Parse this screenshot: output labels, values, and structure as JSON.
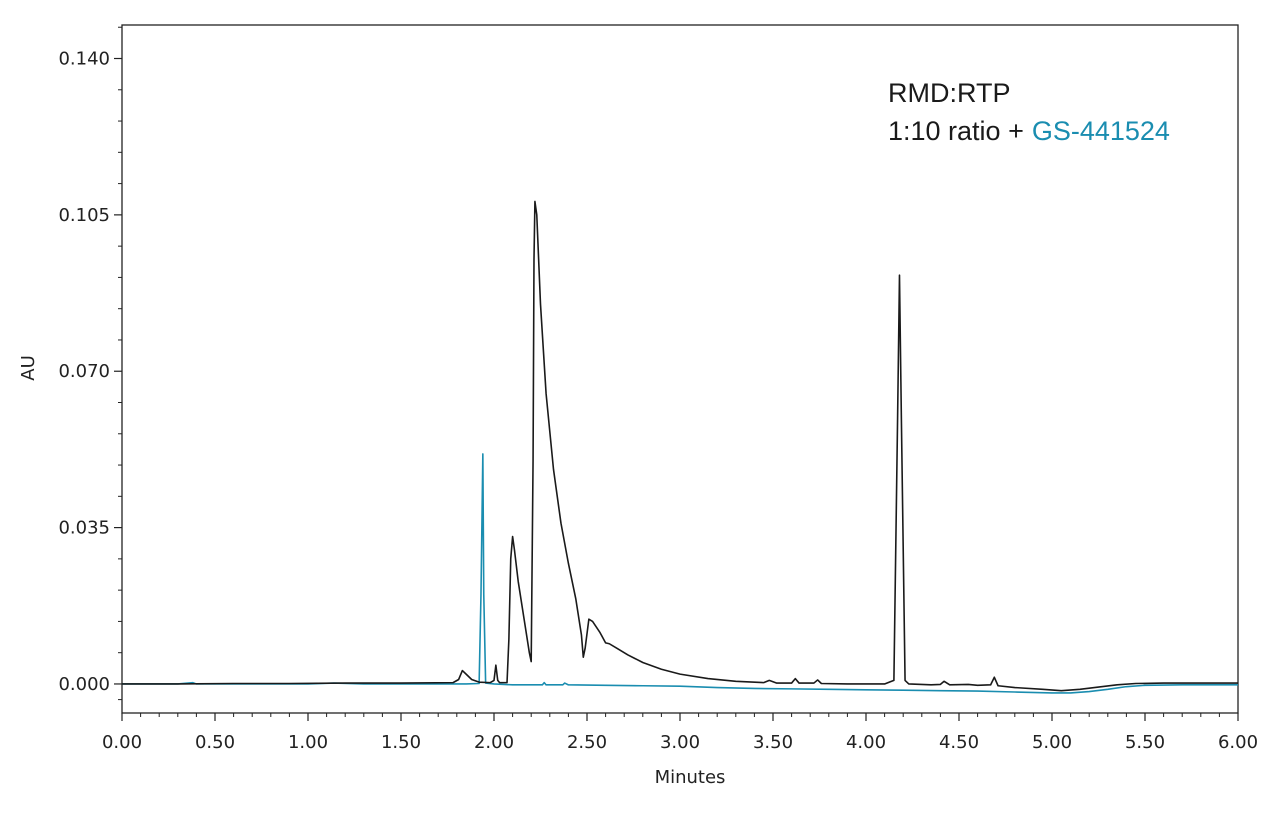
{
  "chart_data": {
    "type": "line",
    "title": "",
    "xlabel": "Minutes",
    "ylabel": "AU",
    "xlim": [
      0.0,
      6.0
    ],
    "ylim": [
      -0.0065,
      0.1475
    ],
    "x_ticks": [
      "0.00",
      "0.50",
      "1.00",
      "1.50",
      "2.00",
      "2.50",
      "3.00",
      "3.50",
      "4.00",
      "4.50",
      "5.00",
      "5.50",
      "6.00"
    ],
    "y_ticks": [
      "0.000",
      "0.035",
      "0.070",
      "0.105",
      "0.140"
    ],
    "grid": false,
    "annotation": {
      "line1": "RMD:RTP",
      "line2_prefix": "1:10 ratio +",
      "line2_highlight": "GS-441524"
    },
    "colors": {
      "black_trace": "#1a1a1a",
      "blue_trace": "#1a8db0",
      "axis": "#222222"
    },
    "series": [
      {
        "color": "#1a1a1a",
        "points": [
          [
            0.0,
            0.0
          ],
          [
            0.3,
            0.0
          ],
          [
            0.6,
            0.0001
          ],
          [
            0.9,
            0.0001
          ],
          [
            1.2,
            0.0002
          ],
          [
            1.5,
            0.0002
          ],
          [
            1.78,
            0.0003
          ],
          [
            1.81,
            0.001
          ],
          [
            1.83,
            0.003
          ],
          [
            1.85,
            0.0022
          ],
          [
            1.88,
            0.001
          ],
          [
            1.92,
            0.0004
          ],
          [
            1.98,
            0.0003
          ],
          [
            2.0,
            0.0008
          ],
          [
            2.01,
            0.0042
          ],
          [
            2.02,
            0.0008
          ],
          [
            2.03,
            0.0003
          ],
          [
            2.07,
            0.0003
          ],
          [
            2.08,
            0.01
          ],
          [
            2.09,
            0.028
          ],
          [
            2.1,
            0.033
          ],
          [
            2.11,
            0.03
          ],
          [
            2.13,
            0.023
          ],
          [
            2.16,
            0.015
          ],
          [
            2.19,
            0.007
          ],
          [
            2.2,
            0.005
          ],
          [
            2.21,
            0.05
          ],
          [
            2.215,
            0.095
          ],
          [
            2.22,
            0.108
          ],
          [
            2.23,
            0.105
          ],
          [
            2.25,
            0.085
          ],
          [
            2.28,
            0.065
          ],
          [
            2.32,
            0.048
          ],
          [
            2.36,
            0.036
          ],
          [
            2.4,
            0.027
          ],
          [
            2.44,
            0.019
          ],
          [
            2.47,
            0.011
          ],
          [
            2.48,
            0.006
          ],
          [
            2.49,
            0.008
          ],
          [
            2.51,
            0.0145
          ],
          [
            2.53,
            0.014
          ],
          [
            2.57,
            0.0115
          ],
          [
            2.6,
            0.0092
          ],
          [
            2.62,
            0.009
          ],
          [
            2.66,
            0.008
          ],
          [
            2.72,
            0.0065
          ],
          [
            2.8,
            0.0048
          ],
          [
            2.9,
            0.0033
          ],
          [
            3.0,
            0.0022
          ],
          [
            3.15,
            0.0012
          ],
          [
            3.3,
            0.0006
          ],
          [
            3.45,
            0.0003
          ],
          [
            3.48,
            0.0008
          ],
          [
            3.52,
            0.0002
          ],
          [
            3.6,
            0.0002
          ],
          [
            3.62,
            0.0012
          ],
          [
            3.64,
            0.0002
          ],
          [
            3.72,
            0.0002
          ],
          [
            3.74,
            0.0009
          ],
          [
            3.76,
            0.0001
          ],
          [
            3.9,
            0.0
          ],
          [
            4.1,
            0.0
          ],
          [
            4.15,
            0.0008
          ],
          [
            4.17,
            0.06
          ],
          [
            4.18,
            0.0915
          ],
          [
            4.19,
            0.06
          ],
          [
            4.21,
            0.0008
          ],
          [
            4.23,
            0.0
          ],
          [
            4.35,
            -0.0002
          ],
          [
            4.4,
            -0.0001
          ],
          [
            4.42,
            0.0006
          ],
          [
            4.45,
            -0.0002
          ],
          [
            4.55,
            -0.0001
          ],
          [
            4.6,
            -0.0003
          ],
          [
            4.67,
            -0.0002
          ],
          [
            4.69,
            0.0015
          ],
          [
            4.71,
            -0.0004
          ],
          [
            4.8,
            -0.0008
          ],
          [
            4.95,
            -0.0012
          ],
          [
            5.05,
            -0.0015
          ],
          [
            5.15,
            -0.0012
          ],
          [
            5.25,
            -0.0007
          ],
          [
            5.35,
            -0.0002
          ],
          [
            5.45,
            0.0001
          ],
          [
            5.6,
            0.0002
          ],
          [
            5.8,
            0.0002
          ],
          [
            6.0,
            0.0002
          ]
        ]
      },
      {
        "color": "#1a8db0",
        "points": [
          [
            0.0,
            0.0
          ],
          [
            0.3,
            0.0
          ],
          [
            0.38,
            0.0003
          ],
          [
            0.4,
            0.0
          ],
          [
            0.7,
            0.0
          ],
          [
            1.0,
            0.0
          ],
          [
            1.14,
            0.0002
          ],
          [
            1.3,
            0.0
          ],
          [
            1.6,
            0.0
          ],
          [
            1.85,
            0.0
          ],
          [
            1.92,
            0.0001
          ],
          [
            1.93,
            0.02
          ],
          [
            1.94,
            0.0515
          ],
          [
            1.945,
            0.02
          ],
          [
            1.955,
            0.0002
          ],
          [
            2.0,
            0.0
          ],
          [
            2.1,
            -0.0002
          ],
          [
            2.26,
            -0.0002
          ],
          [
            2.27,
            0.0003
          ],
          [
            2.28,
            -0.0002
          ],
          [
            2.37,
            -0.0002
          ],
          [
            2.38,
            0.0002
          ],
          [
            2.4,
            -0.0002
          ],
          [
            2.6,
            -0.0003
          ],
          [
            2.8,
            -0.0004
          ],
          [
            3.0,
            -0.0005
          ],
          [
            3.2,
            -0.0008
          ],
          [
            3.4,
            -0.001
          ],
          [
            3.6,
            -0.0011
          ],
          [
            3.8,
            -0.0012
          ],
          [
            4.0,
            -0.0013
          ],
          [
            4.2,
            -0.0014
          ],
          [
            4.4,
            -0.0015
          ],
          [
            4.6,
            -0.0016
          ],
          [
            4.8,
            -0.0018
          ],
          [
            5.0,
            -0.002
          ],
          [
            5.1,
            -0.002
          ],
          [
            5.2,
            -0.0017
          ],
          [
            5.3,
            -0.0012
          ],
          [
            5.4,
            -0.0006
          ],
          [
            5.5,
            -0.0003
          ],
          [
            5.7,
            -0.0002
          ],
          [
            6.0,
            -0.0002
          ]
        ]
      }
    ]
  }
}
